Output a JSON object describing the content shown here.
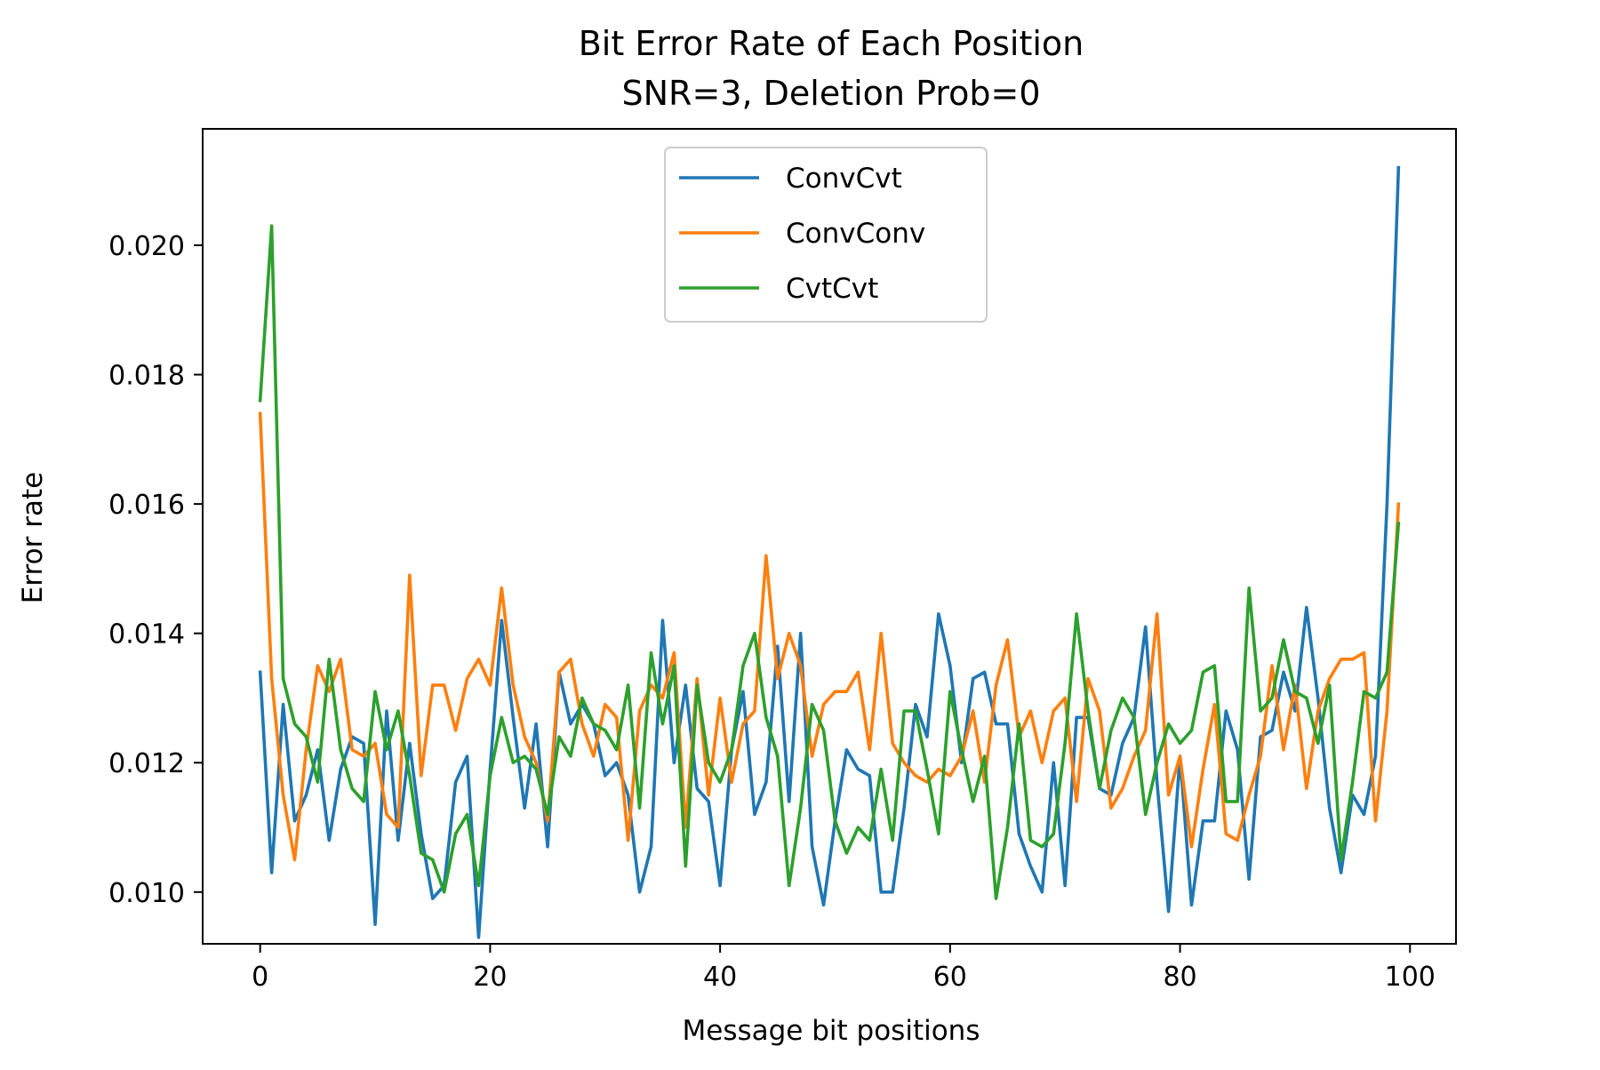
{
  "chart_data": {
    "type": "line",
    "title": "Bit Error Rate of Each Position",
    "subtitle": "SNR=3, Deletion Prob=0",
    "xlabel": "Message bit positions",
    "ylabel": "Error rate",
    "xlim": [
      -5,
      104
    ],
    "ylim": [
      0.0092,
      0.0218
    ],
    "xticks": [
      0,
      20,
      40,
      60,
      80,
      100
    ],
    "xtick_labels": [
      "0",
      "20",
      "40",
      "60",
      "80",
      "100"
    ],
    "yticks": [
      0.01,
      0.012,
      0.014,
      0.016,
      0.018,
      0.02
    ],
    "ytick_labels": [
      "0.010",
      "0.012",
      "0.014",
      "0.016",
      "0.018",
      "0.020"
    ],
    "grid": false,
    "legend_position": "top-center",
    "series": [
      {
        "name": "ConvCvt",
        "color": "#1f77b4",
        "values": [
          0.0134,
          0.0103,
          0.0129,
          0.0111,
          0.0115,
          0.0122,
          0.0108,
          0.0119,
          0.0124,
          0.0123,
          0.0095,
          0.0128,
          0.0108,
          0.0123,
          0.0109,
          0.0099,
          0.0101,
          0.0117,
          0.0121,
          0.0093,
          0.0119,
          0.0142,
          0.0127,
          0.0113,
          0.0126,
          0.0107,
          0.0134,
          0.0126,
          0.0129,
          0.0126,
          0.0118,
          0.012,
          0.0115,
          0.01,
          0.0107,
          0.0142,
          0.012,
          0.0132,
          0.0116,
          0.0114,
          0.0101,
          0.0122,
          0.0131,
          0.0112,
          0.0117,
          0.0138,
          0.0114,
          0.014,
          0.0107,
          0.0098,
          0.0111,
          0.0122,
          0.0119,
          0.0118,
          0.01,
          0.01,
          0.0113,
          0.0129,
          0.0124,
          0.0143,
          0.0135,
          0.012,
          0.0133,
          0.0134,
          0.0126,
          0.0126,
          0.0109,
          0.0104,
          0.01,
          0.012,
          0.0101,
          0.0127,
          0.0127,
          0.0116,
          0.0115,
          0.0123,
          0.0127,
          0.0141,
          0.0117,
          0.0097,
          0.0121,
          0.0098,
          0.0111,
          0.0111,
          0.0128,
          0.0122,
          0.0102,
          0.0124,
          0.0125,
          0.0134,
          0.0128,
          0.0144,
          0.013,
          0.0113,
          0.0103,
          0.0115,
          0.0112,
          0.0121,
          0.016,
          0.0212
        ]
      },
      {
        "name": "ConvConv",
        "color": "#ff7f0e",
        "values": [
          0.0174,
          0.0133,
          0.0115,
          0.0105,
          0.0122,
          0.0135,
          0.0131,
          0.0136,
          0.0122,
          0.0121,
          0.0123,
          0.0112,
          0.011,
          0.0149,
          0.0118,
          0.0132,
          0.0132,
          0.0125,
          0.0133,
          0.0136,
          0.0132,
          0.0147,
          0.0132,
          0.0124,
          0.012,
          0.0111,
          0.0134,
          0.0136,
          0.0126,
          0.0121,
          0.0129,
          0.0127,
          0.0108,
          0.0128,
          0.0132,
          0.013,
          0.0137,
          0.011,
          0.0133,
          0.0115,
          0.013,
          0.0117,
          0.0126,
          0.0128,
          0.0152,
          0.0133,
          0.014,
          0.0135,
          0.0121,
          0.0129,
          0.0131,
          0.0131,
          0.0134,
          0.0122,
          0.014,
          0.0123,
          0.012,
          0.0118,
          0.0117,
          0.0119,
          0.0118,
          0.0121,
          0.0128,
          0.0117,
          0.0132,
          0.0139,
          0.0124,
          0.0128,
          0.012,
          0.0128,
          0.013,
          0.0114,
          0.0133,
          0.0128,
          0.0113,
          0.0116,
          0.0121,
          0.0125,
          0.0143,
          0.0115,
          0.0121,
          0.0107,
          0.0119,
          0.0129,
          0.0109,
          0.0108,
          0.0115,
          0.0121,
          0.0135,
          0.0122,
          0.0132,
          0.0116,
          0.0128,
          0.0133,
          0.0136,
          0.0136,
          0.0137,
          0.0111,
          0.0128,
          0.016
        ]
      },
      {
        "name": "CvtCvt",
        "color": "#2ca02c",
        "values": [
          0.0176,
          0.0203,
          0.0133,
          0.0126,
          0.0124,
          0.0117,
          0.0136,
          0.0122,
          0.0116,
          0.0114,
          0.0131,
          0.0122,
          0.0128,
          0.0118,
          0.0106,
          0.0105,
          0.01,
          0.0109,
          0.0112,
          0.0101,
          0.0118,
          0.0127,
          0.012,
          0.0121,
          0.0119,
          0.0112,
          0.0124,
          0.0121,
          0.013,
          0.0126,
          0.0125,
          0.0122,
          0.0132,
          0.0113,
          0.0137,
          0.0126,
          0.0135,
          0.0104,
          0.0132,
          0.012,
          0.0117,
          0.0122,
          0.0135,
          0.014,
          0.0127,
          0.0121,
          0.0101,
          0.0113,
          0.0129,
          0.0125,
          0.0111,
          0.0106,
          0.011,
          0.0108,
          0.0119,
          0.0108,
          0.0128,
          0.0128,
          0.0119,
          0.0109,
          0.0131,
          0.0122,
          0.0114,
          0.0121,
          0.0099,
          0.011,
          0.0126,
          0.0108,
          0.0107,
          0.0109,
          0.0123,
          0.0143,
          0.0128,
          0.0116,
          0.0125,
          0.013,
          0.0127,
          0.0112,
          0.012,
          0.0126,
          0.0123,
          0.0125,
          0.0134,
          0.0135,
          0.0114,
          0.0114,
          0.0147,
          0.0128,
          0.013,
          0.0139,
          0.0131,
          0.013,
          0.0123,
          0.0132,
          0.0105,
          0.0117,
          0.0131,
          0.013,
          0.0134,
          0.0157
        ]
      }
    ]
  }
}
